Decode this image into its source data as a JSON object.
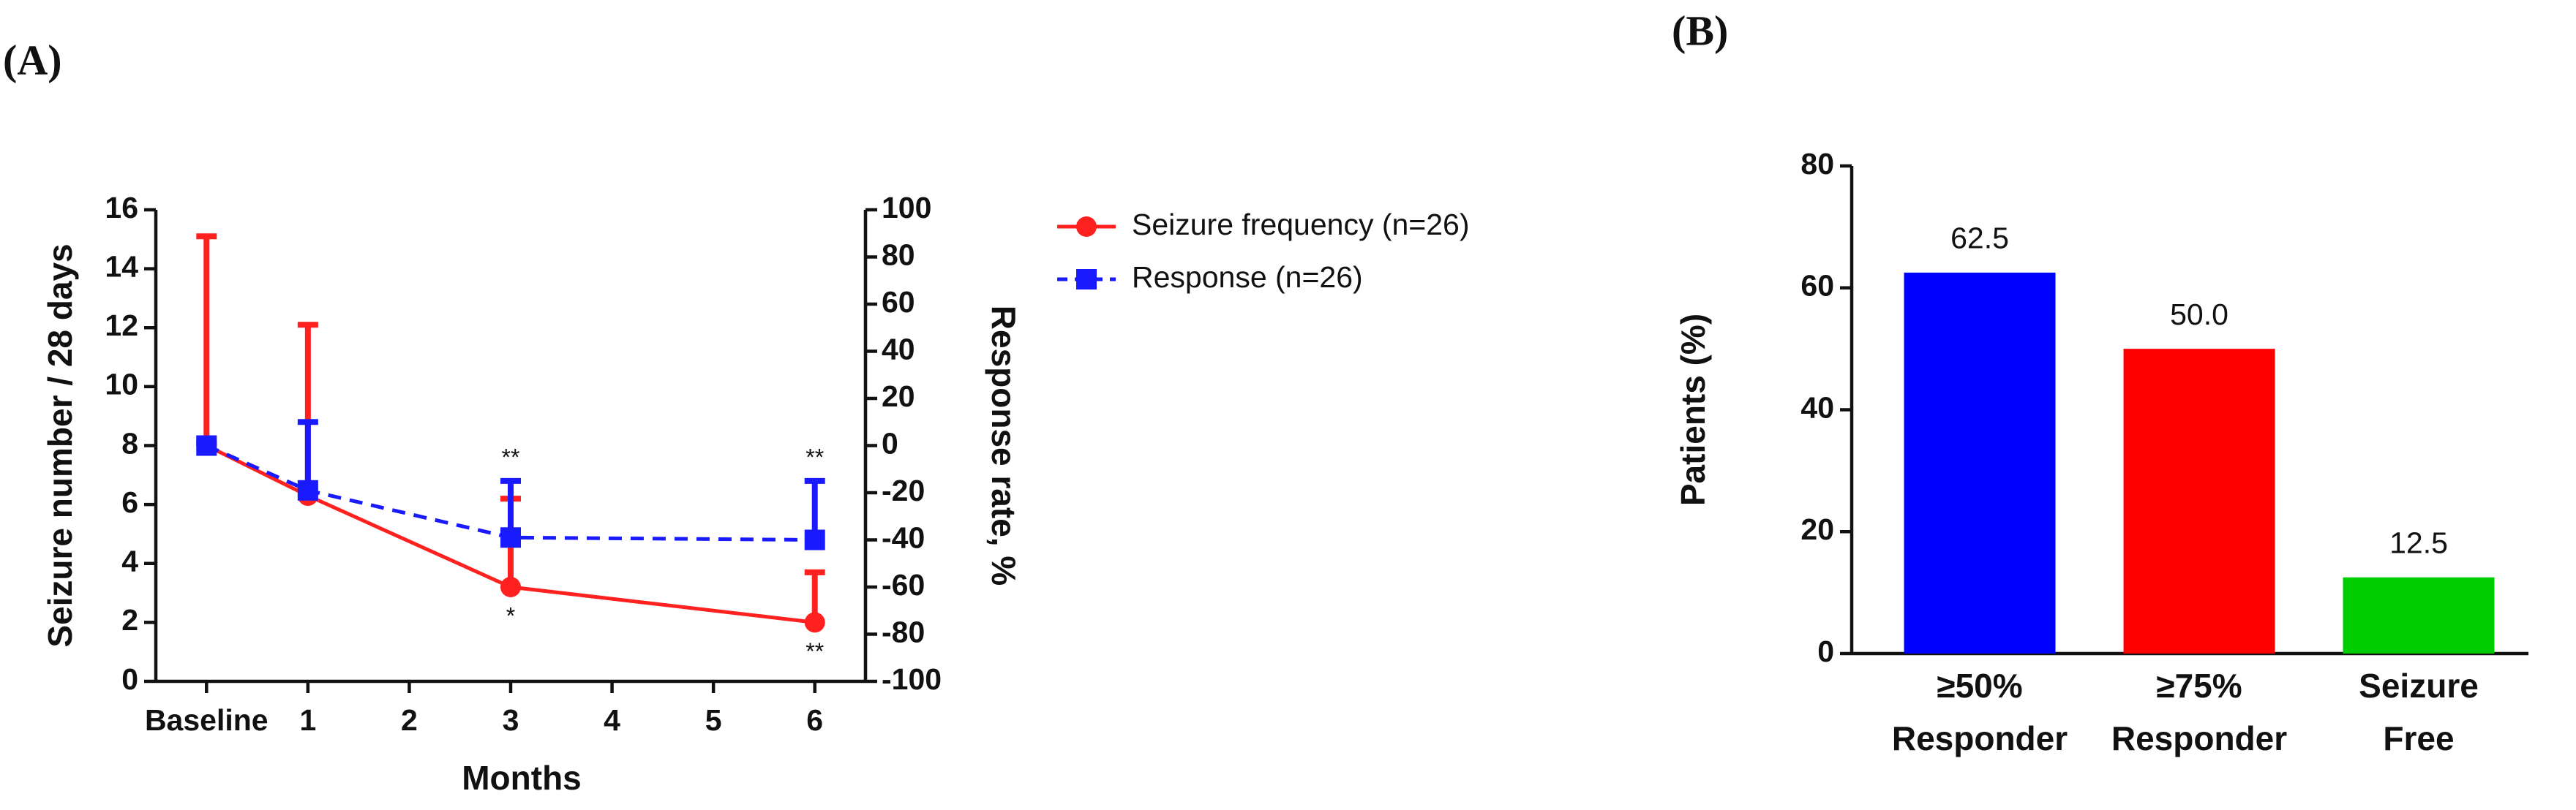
{
  "chart_data": [
    {
      "type": "line",
      "panel_label": "(A)",
      "xlabel": "Months",
      "ylabel": "Seizure number / 28 days",
      "y2label": "Response rate, %",
      "x": [
        0,
        1,
        3,
        6
      ],
      "xlim": [
        -0.5,
        6.5
      ],
      "xticks": [
        {
          "value": 0,
          "label": "Baseline"
        },
        1,
        2,
        3,
        4,
        5,
        6
      ],
      "ylim": [
        0,
        16
      ],
      "yticks": [
        0,
        2,
        4,
        6,
        8,
        10,
        12,
        14,
        16
      ],
      "y2lim": [
        -100,
        100
      ],
      "y2ticks": [
        -100,
        -80,
        -60,
        -40,
        -20,
        0,
        20,
        40,
        60,
        80,
        100
      ],
      "series": [
        {
          "name": "Seizure frequency (n=26)",
          "color": "#ff2020",
          "marker": "circle",
          "linestyle": "solid",
          "values": [
            8,
            6.3,
            3.2,
            2.0
          ],
          "error": [
            7.1,
            5.8,
            3.0,
            1.7
          ],
          "annotations_below": [
            null,
            null,
            "*",
            "**"
          ]
        },
        {
          "name": "Response (n=26)",
          "color": "#1a1aff",
          "marker": "square",
          "linestyle": "dashed",
          "axis": "y2",
          "values": [
            0,
            -19,
            -39,
            -40
          ],
          "error": [
            1,
            29,
            24,
            25
          ],
          "annotations_above": [
            null,
            null,
            "**",
            "**"
          ]
        }
      ]
    },
    {
      "type": "bar",
      "panel_label": "(B)",
      "ylabel": "Patients (%)",
      "categories": [
        [
          "≥50%",
          "Responder"
        ],
        [
          "≥75%",
          "Responder"
        ],
        [
          "Seizure",
          "Free"
        ]
      ],
      "values": [
        62.5,
        50.0,
        12.5
      ],
      "value_labels": [
        "62.5",
        "50.0",
        "12.5"
      ],
      "colors": [
        "#0000ff",
        "#ff0000",
        "#00cc00"
      ],
      "ylim": [
        0,
        80
      ],
      "yticks": [
        0,
        20,
        40,
        60,
        80
      ]
    }
  ]
}
